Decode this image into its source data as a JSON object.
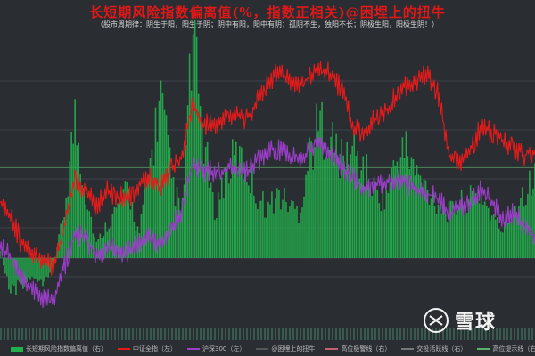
{
  "header": {
    "title": "长短期风险指数偏离值(%，指数正相关)@困埋上的扭牛",
    "subtitle": "（股市周期律：阴生于阳，阳生于阴；阴中有阳，阳中有阴；孤阴不生，独阳不长；阴极生阳，阳极生阴！）"
  },
  "watermark": {
    "text": "雪球",
    "icon": "snowball-logo-icon"
  },
  "colors": {
    "background": "#2a2d32",
    "bars": "#22b14c",
    "red_series": "#e81a1a",
    "purple_series": "#9a3ec8",
    "grid": "#3e434a",
    "ref_line": "#5fae6b"
  },
  "legend": [
    {
      "label": "长短期风险指数偏离值（右）",
      "type": "box",
      "color": "#22b14c"
    },
    {
      "label": "中证全指（左）",
      "type": "line",
      "color": "#e81a1a"
    },
    {
      "label": "沪深300（左）",
      "type": "line",
      "color": "#9a3ec8"
    },
    {
      "label": "@困埋上的扭牛",
      "type": "line",
      "color": "#555555"
    },
    {
      "label": "高位极警线（右）",
      "type": "line",
      "color": "#c06070"
    },
    {
      "label": "交投活跃线（右）",
      "type": "line",
      "color": "#777777"
    },
    {
      "label": "高位提示线（右）",
      "type": "line",
      "color": "#5fae6b"
    }
  ],
  "chart_data": {
    "type": "line",
    "title": "长短期风险指数偏离值(%，指数正相关)@困埋上的扭牛",
    "axes_labels_shown": false,
    "grid": true,
    "legend_position": "bottom",
    "x_domain": [
      0,
      100
    ],
    "y_domain_left": [
      0,
      100
    ],
    "y_domain_right": [
      -30,
      100
    ],
    "series": [
      {
        "name": "中证全指（左）",
        "axis": "left",
        "kind": "line",
        "x": [
          0,
          2,
          4,
          6,
          8,
          10,
          12,
          14,
          16,
          18,
          20,
          22,
          24,
          26,
          28,
          30,
          32,
          34,
          36,
          38,
          40,
          42,
          44,
          46,
          48,
          50,
          52,
          54,
          56,
          58,
          60,
          62,
          64,
          66,
          68,
          70,
          72,
          74,
          76,
          78,
          80,
          82,
          84,
          86,
          88,
          90,
          92,
          94,
          96,
          98,
          100
        ],
        "values": [
          44,
          40,
          30,
          27,
          25,
          21,
          35,
          52,
          48,
          43,
          48,
          46,
          45,
          50,
          53,
          49,
          55,
          60,
          77,
          70,
          71,
          72,
          74,
          72,
          78,
          85,
          88,
          86,
          84,
          87,
          90,
          87,
          82,
          70,
          67,
          72,
          75,
          80,
          84,
          86,
          88,
          80,
          60,
          58,
          62,
          70,
          68,
          65,
          63,
          60,
          61
        ]
      },
      {
        "name": "沪深300（左）",
        "axis": "left",
        "kind": "line",
        "x": [
          0,
          2,
          4,
          6,
          8,
          10,
          12,
          14,
          16,
          18,
          20,
          22,
          24,
          26,
          28,
          30,
          32,
          34,
          36,
          38,
          40,
          42,
          44,
          46,
          48,
          50,
          52,
          54,
          56,
          58,
          60,
          62,
          64,
          66,
          68,
          70,
          72,
          74,
          76,
          78,
          80,
          82,
          84,
          86,
          88,
          90,
          92,
          94,
          96,
          98,
          100
        ],
        "values": [
          28,
          26,
          18,
          14,
          12,
          10,
          22,
          34,
          31,
          26,
          29,
          28,
          27,
          30,
          32,
          30,
          36,
          40,
          58,
          54,
          55,
          55,
          56,
          54,
          58,
          62,
          62,
          60,
          58,
          62,
          64,
          60,
          56,
          52,
          49,
          50,
          51,
          52,
          50,
          48,
          47,
          45,
          40,
          42,
          44,
          48,
          44,
          38,
          40,
          36,
          33
        ]
      },
      {
        "name": "长短期风险指数偏离值（右）",
        "axis": "right",
        "kind": "bar",
        "x": [
          0,
          2,
          4,
          6,
          8,
          10,
          12,
          14,
          16,
          18,
          20,
          22,
          24,
          26,
          28,
          30,
          32,
          34,
          36,
          38,
          40,
          42,
          44,
          46,
          48,
          50,
          52,
          54,
          56,
          58,
          60,
          62,
          64,
          66,
          68,
          70,
          72,
          74,
          76,
          78,
          80,
          82,
          84,
          86,
          88,
          90,
          92,
          94,
          96,
          98,
          100
        ],
        "values": [
          3,
          -16,
          -12,
          -8,
          -10,
          -4,
          20,
          62,
          30,
          6,
          15,
          22,
          30,
          10,
          40,
          72,
          36,
          18,
          95,
          55,
          20,
          35,
          45,
          40,
          28,
          22,
          28,
          24,
          20,
          48,
          60,
          52,
          42,
          48,
          40,
          30,
          26,
          42,
          48,
          36,
          30,
          24,
          20,
          24,
          26,
          28,
          18,
          12,
          22,
          30,
          35
        ]
      }
    ]
  }
}
